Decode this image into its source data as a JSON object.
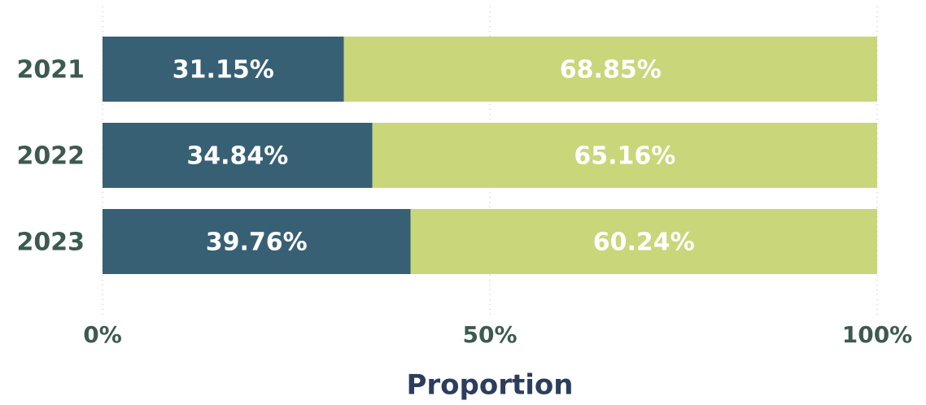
{
  "chart_data": {
    "type": "bar",
    "orientation": "horizontal",
    "stacked": true,
    "categories": [
      "2021",
      "2022",
      "2023"
    ],
    "series": [
      {
        "color": "#376075",
        "values": [
          31.15,
          34.84,
          39.76
        ],
        "value_labels": [
          "31.15%",
          "34.84%",
          "39.76%"
        ]
      },
      {
        "color": "#c9d67a",
        "values": [
          68.85,
          65.16,
          60.24
        ],
        "value_labels": [
          "68.85%",
          "65.16%",
          "60.24%"
        ]
      }
    ],
    "xlabel": "Proportion",
    "xlim": [
      0,
      100
    ],
    "xticks": [
      {
        "value": 0,
        "label": "0%"
      },
      {
        "value": 50,
        "label": "50%"
      },
      {
        "value": 100,
        "label": "100%"
      }
    ],
    "grid": true
  }
}
